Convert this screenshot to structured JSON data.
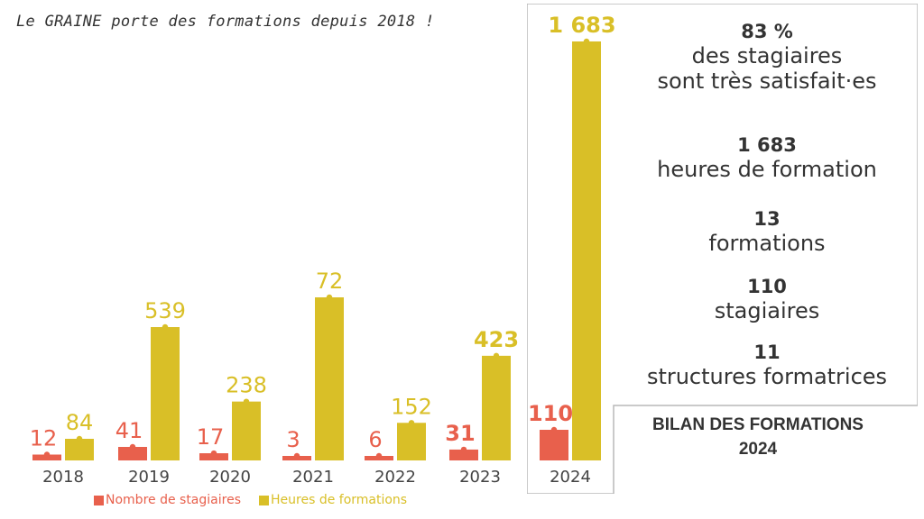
{
  "tagline": "Le GRAINE porte des formations depuis 2018 !",
  "colors": {
    "stagiaires": "#E8604C",
    "heures": "#D9BF27",
    "text": "#333333",
    "frame": "#B8B8B8"
  },
  "chart_data": {
    "type": "bar",
    "categories": [
      "2018",
      "2019",
      "2020",
      "2021",
      "2022",
      "2023",
      "2024"
    ],
    "series": [
      {
        "name": "Nombre de stagiaires",
        "values": [
          12,
          41,
          17,
          3,
          6,
          31,
          110
        ]
      },
      {
        "name": "Heures de formations",
        "values": [
          84,
          539,
          238,
          72,
          152,
          423,
          1683
        ]
      }
    ],
    "display_labels": {
      "stagiaires": [
        "12",
        "41",
        "17",
        "3",
        "6",
        "31",
        "110"
      ],
      "heures": [
        "84",
        "539",
        "238",
        "72",
        "152",
        "423",
        "1 683"
      ]
    },
    "bold_labels": {
      "stagiaires": [
        5,
        6
      ],
      "heures": [
        5,
        6
      ]
    },
    "legend_position": "bottom",
    "grid": false
  },
  "summary": {
    "stats": [
      {
        "value": "83 %",
        "label_lines": [
          "des stagiaires",
          "sont très satisfait·es"
        ]
      },
      {
        "value": "1 683",
        "label_lines": [
          "heures de formation"
        ]
      },
      {
        "value": "13",
        "label_lines": [
          "formations"
        ]
      },
      {
        "value": "110",
        "label_lines": [
          "stagiaires"
        ]
      },
      {
        "value": "11",
        "label_lines": [
          "structures formatrices"
        ]
      }
    ],
    "title_lines": [
      "BILAN DES FORMATIONS",
      "2024"
    ]
  }
}
